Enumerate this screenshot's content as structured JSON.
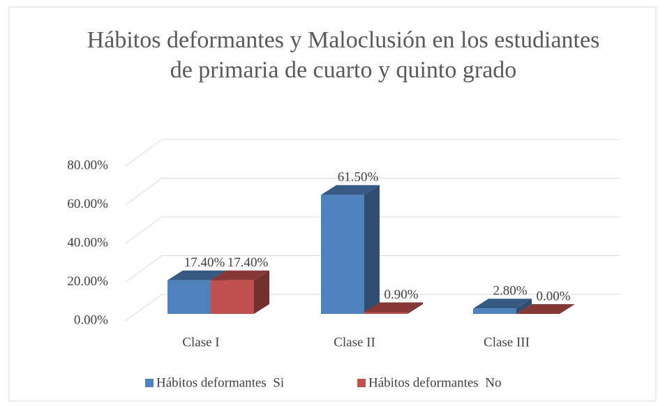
{
  "chart_data": {
    "type": "bar3d",
    "title": "Hábitos deformantes y Maloclusión en los estudiantes de primaria de cuarto y quinto grado",
    "categories": [
      "Clase I",
      "Clase II",
      "Clase III"
    ],
    "series": [
      {
        "name": "Hábitos deformantes  Si",
        "color": "#4f81bd",
        "values": [
          17.4,
          61.5,
          2.8
        ],
        "value_labels": [
          "17.40%",
          "61.50%",
          "2.80%"
        ]
      },
      {
        "name": "Hábitos deformantes  No",
        "color": "#c0504d",
        "values": [
          17.4,
          0.9,
          0.0
        ],
        "value_labels": [
          "17.40%",
          "0.90%",
          "0.00%"
        ]
      }
    ],
    "ylim": [
      0,
      80
    ],
    "yticks": [
      {
        "value": 0,
        "label": "0.00%"
      },
      {
        "value": 20,
        "label": "20.00%"
      },
      {
        "value": 40,
        "label": "40.00%"
      },
      {
        "value": 60,
        "label": "60.00%"
      },
      {
        "value": 80,
        "label": "80.00%"
      }
    ],
    "grid": true,
    "legend": "bottom"
  }
}
